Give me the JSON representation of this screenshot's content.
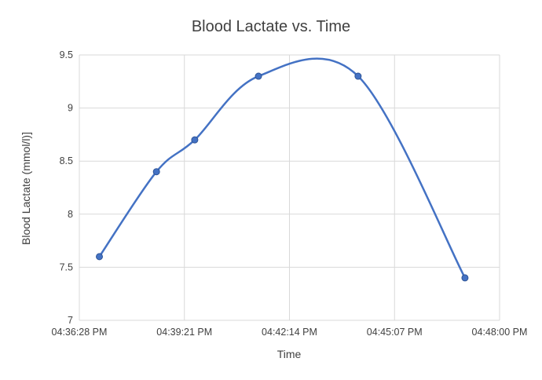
{
  "chart_data": {
    "type": "scatter",
    "title": "Blood Lactate vs. Time",
    "xlabel": "Time",
    "ylabel": "Blood Lactate (mmol/l)]",
    "x_tick_labels": [
      "04:36:28 PM",
      "04:39:21 PM",
      "04:42:14 PM",
      "04:45:07 PM",
      "04:48:00 PM"
    ],
    "y_tick_labels": [
      "7",
      "7.5",
      "8",
      "8.5",
      "9",
      "9.5"
    ],
    "xlim": [
      "04:36:28 PM",
      "04:48:00 PM"
    ],
    "ylim": [
      7,
      9.5
    ],
    "grid": true,
    "smooth_line": true,
    "series": [
      {
        "x": [
          "04:37:01 PM",
          "04:38:35 PM",
          "04:39:38 PM",
          "04:41:23 PM",
          "04:44:07 PM",
          "04:47:03 PM"
        ],
        "values": [
          7.6,
          8.4,
          8.7,
          9.3,
          9.3,
          7.4
        ],
        "color": "#4472c4"
      }
    ]
  }
}
